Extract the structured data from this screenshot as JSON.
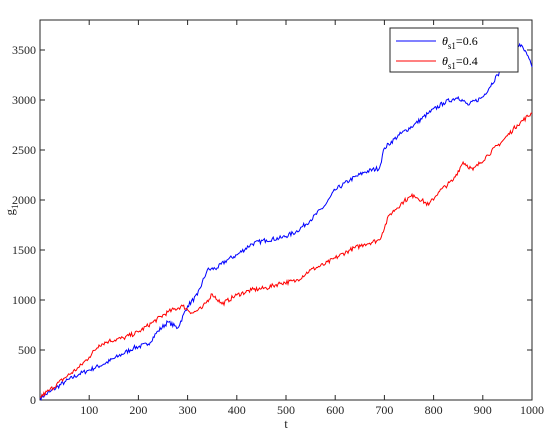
{
  "chart_data": {
    "type": "line",
    "xlabel": "t",
    "ylabel": "g",
    "ylabel_sub": "1",
    "xlim": [
      0,
      1000
    ],
    "ylim": [
      0,
      3800
    ],
    "xticks": [
      100,
      200,
      300,
      400,
      500,
      600,
      700,
      800,
      900,
      1000
    ],
    "yticks": [
      0,
      500,
      1000,
      1500,
      2000,
      2500,
      3000,
      3500
    ],
    "grid": false,
    "legend_position": "top-right",
    "series": [
      {
        "name_symbol": "θ",
        "name_sub": "s1",
        "name_value": "=0.6",
        "color": "#0000ff",
        "x": [
          0,
          20,
          50,
          80,
          100,
          130,
          160,
          190,
          220,
          240,
          260,
          280,
          300,
          320,
          340,
          360,
          380,
          400,
          430,
          460,
          490,
          520,
          550,
          580,
          600,
          630,
          660,
          690,
          700,
          730,
          760,
          790,
          820,
          850,
          870,
          900,
          930,
          960,
          975,
          990,
          1000
        ],
        "values": [
          20,
          80,
          180,
          260,
          300,
          360,
          440,
          520,
          560,
          690,
          780,
          720,
          940,
          1050,
          1300,
          1320,
          1400,
          1450,
          1560,
          1600,
          1620,
          1680,
          1800,
          1950,
          2100,
          2200,
          2280,
          2320,
          2520,
          2650,
          2750,
          2870,
          2970,
          3030,
          2950,
          3030,
          3250,
          3450,
          3560,
          3450,
          3330
        ]
      },
      {
        "name_symbol": "θ",
        "name_sub": "s1",
        "name_value": "=0.4",
        "color": "#ff0000",
        "x": [
          0,
          20,
          50,
          80,
          100,
          120,
          140,
          170,
          200,
          230,
          260,
          290,
          310,
          330,
          350,
          370,
          400,
          430,
          460,
          490,
          520,
          550,
          580,
          600,
          630,
          660,
          690,
          710,
          740,
          760,
          790,
          810,
          840,
          860,
          880,
          910,
          940,
          970,
          1000
        ],
        "values": [
          30,
          100,
          220,
          330,
          430,
          550,
          590,
          620,
          680,
          780,
          880,
          940,
          870,
          920,
          1060,
          960,
          1050,
          1100,
          1120,
          1170,
          1190,
          1300,
          1360,
          1420,
          1500,
          1560,
          1600,
          1850,
          1990,
          2050,
          1950,
          2080,
          2200,
          2380,
          2300,
          2450,
          2590,
          2750,
          2870
        ]
      }
    ]
  }
}
